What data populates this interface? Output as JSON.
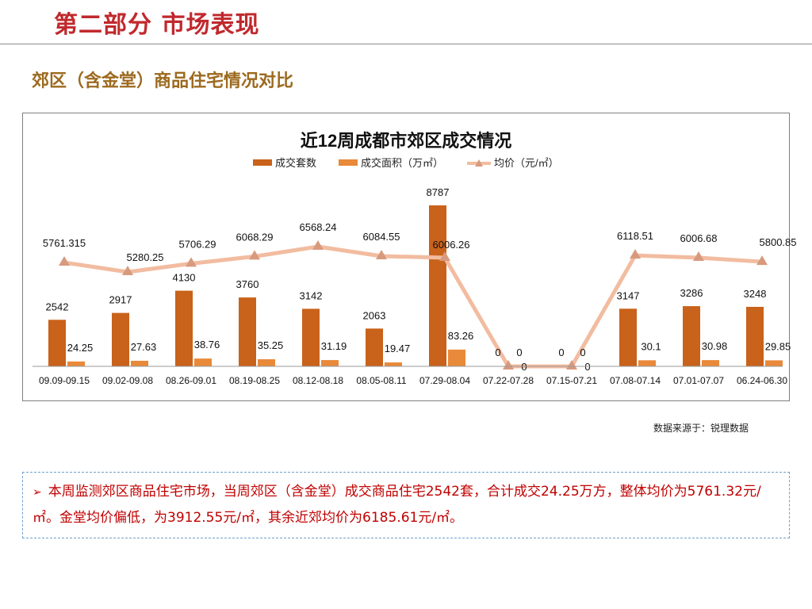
{
  "header": {
    "section_title": "第二部分 市场表现",
    "sub_title": "郊区（含金堂）商品住宅情况对比"
  },
  "chart_data": {
    "type": "bar",
    "title": "近12周成都市郊区成交情况",
    "categories": [
      "09.09-09.15",
      "09.02-09.08",
      "08.26-09.01",
      "08.19-08.25",
      "08.12-08.18",
      "08.05-08.11",
      "07.29-08.04",
      "07.22-07.28",
      "07.15-07.21",
      "07.08-07.14",
      "07.01-07.07",
      "06.24-06.30"
    ],
    "series": [
      {
        "name": "成交套数",
        "kind": "bar",
        "axis": "left",
        "color": "#c9621a",
        "values": [
          2542,
          2917,
          4130,
          3760,
          3142,
          2063,
          8787,
          0,
          0,
          3147,
          3286,
          3248
        ],
        "labels": [
          "2542",
          "2917",
          "4130",
          "3760",
          "3142",
          "2063",
          "8787",
          "0",
          "0",
          "3147",
          "3286",
          "3248"
        ]
      },
      {
        "name": "成交面积（万㎡）",
        "kind": "bar",
        "axis": "right",
        "color": "#e9893a",
        "values": [
          24.25,
          27.63,
          38.76,
          35.25,
          31.19,
          19.47,
          83.26,
          0,
          0,
          30.1,
          30.98,
          29.85
        ],
        "labels": [
          "24.25",
          "27.63",
          "38.76",
          "35.25",
          "31.19",
          "19.47",
          "83.26",
          "0",
          "0",
          "30.1",
          "30.98",
          "29.85"
        ]
      },
      {
        "name": "均价（元/㎡）",
        "kind": "line",
        "axis": "left",
        "color": "#f2bca0",
        "values": [
          5761.315,
          5280.25,
          5706.29,
          6068.29,
          6568.24,
          6084.55,
          6006.26,
          0,
          0,
          6118.51,
          6006.68,
          5800.85
        ],
        "labels": [
          "5761.315",
          "5280.25",
          "5706.29",
          "6068.29",
          "6568.24",
          "6084.55",
          "6006.26",
          "0",
          "0",
          "6118.51",
          "6006.68",
          "5800.85"
        ]
      }
    ],
    "ylim": [
      0,
      9000
    ],
    "legend": "top",
    "grid": false
  },
  "source_note": "数据来源于：锐理数据",
  "summary": {
    "bullet": "➢",
    "text": "本周监测郊区商品住宅市场，当周郊区（含金堂）成交商品住宅2542套，合计成交24.25万方，整体均价为5761.32元/㎡。金堂均价偏低，为3912.55元/㎡，其余近郊均价为6185.61元/㎡。"
  }
}
